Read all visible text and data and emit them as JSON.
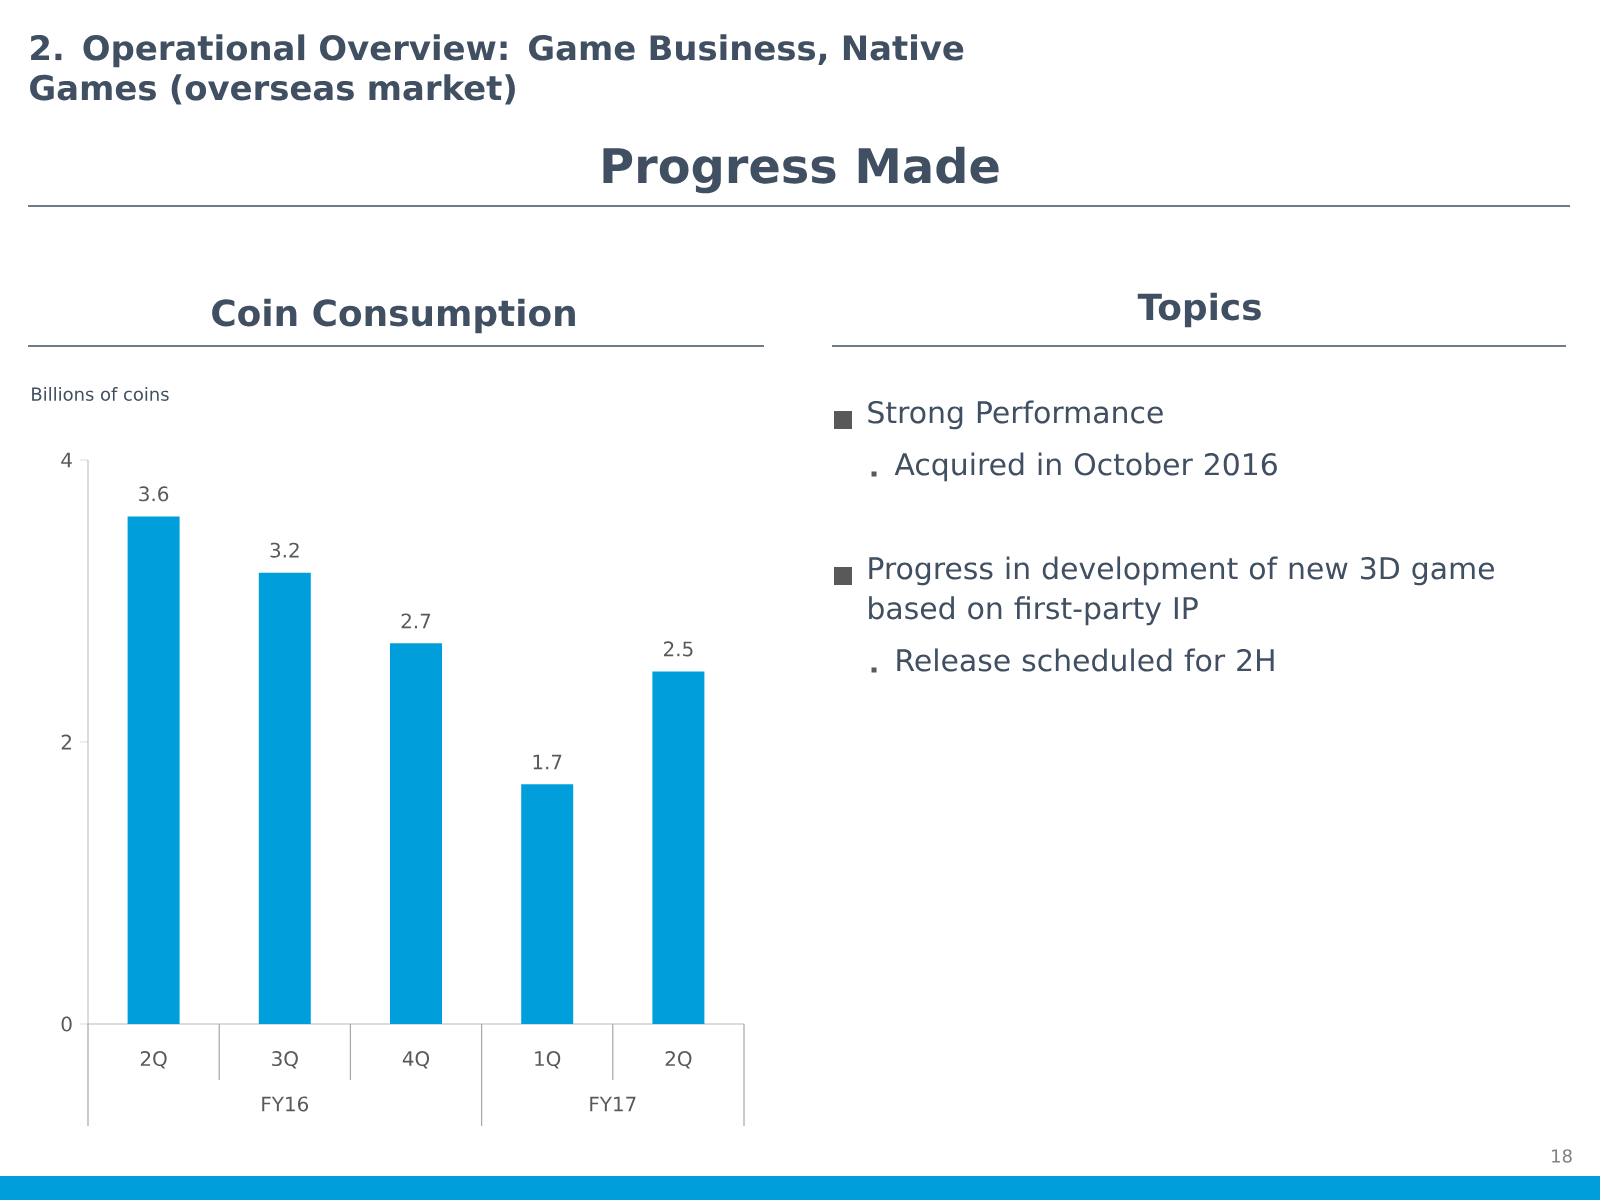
{
  "chart_data": [
    {
      "type": "other",
      "title": "2. Operational Overview: Game Business, Native Games (overseas market)",
      "subtitle": "Progress Made",
      "annotations": [
        "18"
      ]
    },
    {
      "type": "bar",
      "title": "Coin Consumption",
      "ylabel": "Billions of coins",
      "categories": [
        "2Q",
        "3Q",
        "4Q",
        "1Q",
        "2Q"
      ],
      "values": [
        3.6,
        3.2,
        2.7,
        1.7,
        2.5
      ],
      "color": "#009fdb",
      "ylim": [
        0,
        4
      ],
      "yticks": [
        0,
        2,
        4
      ],
      "data_labels": true,
      "annotations": [
        "FY16",
        "FY17"
      ]
    },
    {
      "type": "other",
      "title": "Topics",
      "annotations": [
        "Strong Performance",
        "Acquired in October 2016",
        "Progress in development of new 3D game based on first-party IP",
        "Release scheduled for 2H"
      ]
    }
  ]
}
